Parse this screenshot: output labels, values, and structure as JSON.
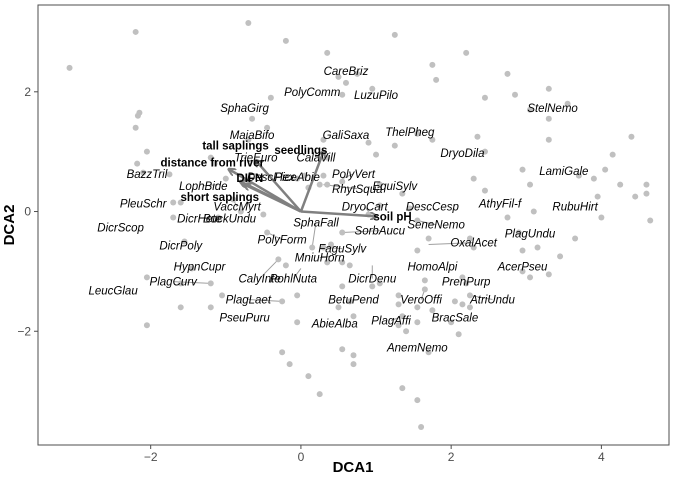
{
  "chart_data": {
    "type": "scatter",
    "xlabel": "DCA1",
    "ylabel": "DCA2",
    "xlim": [
      -3.5,
      4.9
    ],
    "ylim": [
      -3.9,
      3.45
    ],
    "x_ticks": [
      -2,
      0,
      2,
      4
    ],
    "y_ticks": [
      -2,
      0,
      2
    ],
    "grid": false,
    "colors": {
      "point": "#c0c0c0",
      "arrow": "#808080",
      "leader": "#a0a0a0",
      "frame": "#4d4d4d"
    },
    "points": [
      [
        -3.08,
        2.4
      ],
      [
        -2.2,
        3.0
      ],
      [
        -2.15,
        1.65
      ],
      [
        -2.17,
        1.6
      ],
      [
        -2.2,
        1.4
      ],
      [
        -2.05,
        1.0
      ],
      [
        -2.18,
        0.8
      ],
      [
        -2.1,
        0.65
      ],
      [
        -2.05,
        -1.1
      ],
      [
        -2.05,
        -1.9
      ],
      [
        -1.75,
        0.62
      ],
      [
        -1.7,
        0.15
      ],
      [
        -1.6,
        0.15
      ],
      [
        -1.7,
        -0.1
      ],
      [
        -1.55,
        -0.5
      ],
      [
        -1.6,
        -1.2
      ],
      [
        -1.6,
        -1.6
      ],
      [
        -1.45,
        -0.95
      ],
      [
        -1.2,
        -1.2
      ],
      [
        -1.2,
        -1.6
      ],
      [
        -1.05,
        -1.4
      ],
      [
        -1.1,
        -0.1
      ],
      [
        -1.0,
        0.55
      ],
      [
        -1.2,
        0.9
      ],
      [
        -1.15,
        0.8
      ],
      [
        -0.9,
        0.2
      ],
      [
        -0.8,
        0.0
      ],
      [
        -0.7,
        0.45
      ],
      [
        -0.5,
        -0.05
      ],
      [
        -0.45,
        -0.35
      ],
      [
        -0.3,
        -0.8
      ],
      [
        -0.2,
        -0.9
      ],
      [
        -0.25,
        -1.5
      ],
      [
        -0.05,
        -1.4
      ],
      [
        -0.05,
        -1.85
      ],
      [
        -0.05,
        0.55
      ],
      [
        0.05,
        0.6
      ],
      [
        0.1,
        0.4
      ],
      [
        0.25,
        0.45
      ],
      [
        0.15,
        -0.6
      ],
      [
        0.3,
        -0.6
      ],
      [
        0.35,
        -0.85
      ],
      [
        0.55,
        -0.85
      ],
      [
        0.65,
        -0.9
      ],
      [
        0.5,
        -1.6
      ],
      [
        0.65,
        -1.5
      ],
      [
        0.7,
        -1.75
      ],
      [
        0.55,
        -1.25
      ],
      [
        0.95,
        -1.25
      ],
      [
        1.05,
        -1.2
      ],
      [
        -0.7,
        3.15
      ],
      [
        -0.2,
        2.85
      ],
      [
        0.35,
        2.65
      ],
      [
        0.5,
        2.25
      ],
      [
        0.6,
        2.15
      ],
      [
        0.75,
        2.3
      ],
      [
        0.95,
        2.05
      ],
      [
        0.55,
        1.95
      ],
      [
        -0.4,
        1.9
      ],
      [
        -0.65,
        1.55
      ],
      [
        -0.45,
        1.4
      ],
      [
        -0.7,
        1.2
      ],
      [
        0.3,
        1.2
      ],
      [
        0.9,
        1.15
      ],
      [
        1.0,
        0.95
      ],
      [
        1.25,
        1.1
      ],
      [
        1.55,
        1.3
      ],
      [
        1.75,
        1.2
      ],
      [
        0.35,
        0.9
      ],
      [
        0.3,
        0.6
      ],
      [
        0.35,
        0.45
      ],
      [
        0.55,
        0.5
      ],
      [
        0.4,
        -0.55
      ],
      [
        0.55,
        -0.35
      ],
      [
        0.9,
        -0.05
      ],
      [
        1.05,
        0.45
      ],
      [
        1.05,
        0.1
      ],
      [
        1.35,
        0.3
      ],
      [
        1.45,
        0.05
      ],
      [
        1.55,
        -0.15
      ],
      [
        1.7,
        -0.45
      ],
      [
        1.55,
        -0.65
      ],
      [
        1.65,
        -1.15
      ],
      [
        1.65,
        -1.3
      ],
      [
        1.55,
        -1.6
      ],
      [
        1.75,
        -1.65
      ],
      [
        1.55,
        -1.85
      ],
      [
        1.3,
        -1.4
      ],
      [
        1.3,
        -1.55
      ],
      [
        1.35,
        -1.75
      ],
      [
        1.3,
        -1.9
      ],
      [
        1.4,
        -2.0
      ],
      [
        1.35,
        -2.95
      ],
      [
        1.55,
        -3.15
      ],
      [
        1.6,
        -3.6
      ],
      [
        1.7,
        -2.35
      ],
      [
        0.7,
        -2.4
      ],
      [
        0.7,
        -2.55
      ],
      [
        -0.25,
        -2.35
      ],
      [
        -0.15,
        -2.55
      ],
      [
        0.1,
        -2.75
      ],
      [
        0.25,
        -3.05
      ],
      [
        0.55,
        -2.3
      ],
      [
        1.25,
        2.95
      ],
      [
        1.75,
        2.45
      ],
      [
        1.8,
        2.2
      ],
      [
        2.2,
        2.65
      ],
      [
        2.45,
        1.9
      ],
      [
        2.35,
        1.25
      ],
      [
        2.45,
        1.0
      ],
      [
        2.3,
        0.55
      ],
      [
        2.45,
        0.35
      ],
      [
        2.25,
        -0.45
      ],
      [
        2.3,
        -0.6
      ],
      [
        2.15,
        -1.1
      ],
      [
        2.2,
        -1.2
      ],
      [
        2.25,
        -1.4
      ],
      [
        2.05,
        -1.5
      ],
      [
        2.15,
        -1.55
      ],
      [
        2.25,
        -1.6
      ],
      [
        2.0,
        -1.85
      ],
      [
        2.1,
        -2.05
      ],
      [
        2.75,
        2.3
      ],
      [
        2.85,
        1.95
      ],
      [
        3.05,
        1.7
      ],
      [
        3.3,
        2.05
      ],
      [
        3.3,
        1.55
      ],
      [
        3.55,
        1.8
      ],
      [
        3.3,
        1.2
      ],
      [
        2.95,
        0.7
      ],
      [
        3.05,
        0.45
      ],
      [
        2.75,
        -0.1
      ],
      [
        2.9,
        -0.35
      ],
      [
        2.95,
        -0.65
      ],
      [
        3.15,
        -0.6
      ],
      [
        2.95,
        -1.0
      ],
      [
        3.05,
        -1.1
      ],
      [
        3.3,
        -1.05
      ],
      [
        3.45,
        -0.75
      ],
      [
        3.65,
        -0.45
      ],
      [
        3.7,
        0.6
      ],
      [
        3.9,
        0.55
      ],
      [
        4.15,
        0.95
      ],
      [
        4.4,
        1.25
      ],
      [
        4.45,
        0.25
      ],
      [
        4.6,
        0.45
      ],
      [
        4.6,
        0.3
      ],
      [
        4.65,
        -0.15
      ],
      [
        4.25,
        0.45
      ],
      [
        4.0,
        -0.1
      ],
      [
        3.95,
        0.25
      ],
      [
        4.05,
        0.7
      ],
      [
        3.1,
        0.0
      ]
    ],
    "vectors": [
      {
        "name": "tall saplings",
        "x": -0.6,
        "y": 0.85
      },
      {
        "name": "seedlings",
        "x": 0.3,
        "y": 1.0
      },
      {
        "name": "distance from river",
        "x": -0.95,
        "y": 0.7
      },
      {
        "name": "DIFN",
        "x": -0.8,
        "y": 0.5
      },
      {
        "name": "short saplings",
        "x": -0.75,
        "y": 0.45
      },
      {
        "name": "soil pH",
        "x": 1.0,
        "y": -0.08
      }
    ],
    "vector_labels": [
      {
        "text": "tall saplings",
        "x": -0.87,
        "y": 1.1
      },
      {
        "text": "seedlings",
        "x": 0.0,
        "y": 1.03
      },
      {
        "text": "distance from river",
        "x": -1.18,
        "y": 0.82
      },
      {
        "text": "DIFN",
        "x": -0.68,
        "y": 0.56
      },
      {
        "text": "short saplings",
        "x": -1.08,
        "y": 0.24
      },
      {
        "text": "soil pH",
        "x": 1.22,
        "y": -0.08
      }
    ],
    "species": [
      {
        "name": "CareBriz",
        "x": 0.6,
        "y": 2.35
      },
      {
        "name": "PolyComm",
        "x": 0.15,
        "y": 2.0
      },
      {
        "name": "LuzuPilo",
        "x": 1.0,
        "y": 1.95
      },
      {
        "name": "SphaGirg",
        "x": -0.75,
        "y": 1.73
      },
      {
        "name": "StelNemo",
        "x": 3.35,
        "y": 1.73
      },
      {
        "name": "ThelPheg",
        "x": 1.45,
        "y": 1.33
      },
      {
        "name": "MaiaBifo",
        "x": -0.65,
        "y": 1.28
      },
      {
        "name": "GaliSaxa",
        "x": 0.6,
        "y": 1.28
      },
      {
        "name": "DryoDila",
        "x": 2.15,
        "y": 0.98
      },
      {
        "name": "TrieEuro",
        "x": -0.6,
        "y": 0.9
      },
      {
        "name": "CalaVill",
        "x": 0.2,
        "y": 0.9
      },
      {
        "name": "PolyVert",
        "x": 0.7,
        "y": 0.63
      },
      {
        "name": "LamiGale",
        "x": 3.5,
        "y": 0.68
      },
      {
        "name": "BazzTril",
        "x": -2.05,
        "y": 0.63
      },
      {
        "name": "DescFlex",
        "x": -0.4,
        "y": 0.58
      },
      {
        "name": "PiceAbie",
        "x": -0.05,
        "y": 0.58
      },
      {
        "name": "LophBide",
        "x": -1.3,
        "y": 0.43
      },
      {
        "name": "EquiSylv",
        "x": 1.25,
        "y": 0.43
      },
      {
        "name": "RhytSqua",
        "x": 0.75,
        "y": 0.38
      },
      {
        "name": "PleuSchr",
        "x": -2.1,
        "y": 0.13
      },
      {
        "name": "AthyFil-f",
        "x": 2.65,
        "y": 0.13
      },
      {
        "name": "RubuHirt",
        "x": 3.65,
        "y": 0.08
      },
      {
        "name": "VaccMyrt",
        "x": -0.85,
        "y": 0.08
      },
      {
        "name": "DryoCart",
        "x": 0.85,
        "y": 0.08
      },
      {
        "name": "DescCesp",
        "x": 1.75,
        "y": 0.08
      },
      {
        "name": "BuckUndu",
        "x": -0.95,
        "y": -0.12
      },
      {
        "name": "DicrHete",
        "x": -1.35,
        "y": -0.12
      },
      {
        "name": "SphaFall",
        "x": 0.2,
        "y": -0.18
      },
      {
        "name": "SeneNemo",
        "x": 1.8,
        "y": -0.22
      },
      {
        "name": "DicrScop",
        "x": -2.4,
        "y": -0.27
      },
      {
        "name": "SorbAucu",
        "x": 1.05,
        "y": -0.32
      },
      {
        "name": "PlagUndu",
        "x": 3.05,
        "y": -0.37
      },
      {
        "name": "PolyForm",
        "x": -0.25,
        "y": -0.47
      },
      {
        "name": "OxalAcet",
        "x": 2.3,
        "y": -0.52
      },
      {
        "name": "DicrPoly",
        "x": -1.6,
        "y": -0.57
      },
      {
        "name": "FaguSylv",
        "x": 0.55,
        "y": -0.62
      },
      {
        "name": "MniuHorn",
        "x": 0.25,
        "y": -0.77
      },
      {
        "name": "HypnCupr",
        "x": -1.35,
        "y": -0.92
      },
      {
        "name": "HomoAlpi",
        "x": 1.75,
        "y": -0.92
      },
      {
        "name": "AcerPseu",
        "x": 2.95,
        "y": -0.92
      },
      {
        "name": "CalyInte",
        "x": -0.55,
        "y": -1.12
      },
      {
        "name": "PohlNuta",
        "x": -0.1,
        "y": -1.12
      },
      {
        "name": "DicrDenu",
        "x": 0.95,
        "y": -1.12
      },
      {
        "name": "PlagCurv",
        "x": -1.7,
        "y": -1.17
      },
      {
        "name": "PrenPurp",
        "x": 2.2,
        "y": -1.17
      },
      {
        "name": "LeucGlau",
        "x": -2.5,
        "y": -1.32
      },
      {
        "name": "PlagLaet",
        "x": -0.7,
        "y": -1.47
      },
      {
        "name": "BetuPend",
        "x": 0.7,
        "y": -1.47
      },
      {
        "name": "VeroOffi",
        "x": 1.6,
        "y": -1.47
      },
      {
        "name": "AtriUndu",
        "x": 2.55,
        "y": -1.47
      },
      {
        "name": "PseuPuru",
        "x": -0.75,
        "y": -1.77
      },
      {
        "name": "BracSale",
        "x": 2.05,
        "y": -1.77
      },
      {
        "name": "PlagAffi",
        "x": 1.2,
        "y": -1.82
      },
      {
        "name": "AbieAlba",
        "x": 0.45,
        "y": -1.87
      },
      {
        "name": "AnemNemo",
        "x": 1.55,
        "y": -2.27
      }
    ],
    "leaders": [
      [
        [
          -1.3,
          0.43
        ],
        [
          -1.1,
          0.45
        ]
      ],
      [
        [
          -0.4,
          0.58
        ],
        [
          -0.35,
          0.5
        ]
      ],
      [
        [
          0.75,
          0.38
        ],
        [
          0.3,
          0.45
        ]
      ],
      [
        [
          0.7,
          0.63
        ],
        [
          0.55,
          0.55
        ]
      ],
      [
        [
          -0.85,
          0.08
        ],
        [
          -0.9,
          0.2
        ]
      ],
      [
        [
          0.85,
          0.08
        ],
        [
          0.9,
          0.0
        ]
      ],
      [
        [
          1.8,
          -0.22
        ],
        [
          1.55,
          -0.15
        ]
      ],
      [
        [
          1.05,
          -0.32
        ],
        [
          0.55,
          -0.35
        ]
      ],
      [
        [
          0.2,
          -0.18
        ],
        [
          0.15,
          -0.6
        ]
      ],
      [
        [
          -0.25,
          -0.47
        ],
        [
          -0.45,
          -0.35
        ]
      ],
      [
        [
          2.3,
          -0.52
        ],
        [
          1.7,
          -0.55
        ]
      ],
      [
        [
          0.55,
          -0.62
        ],
        [
          0.3,
          -0.6
        ]
      ],
      [
        [
          0.25,
          -0.77
        ],
        [
          0.4,
          -0.75
        ]
      ],
      [
        [
          -0.1,
          -1.12
        ],
        [
          0.0,
          -0.95
        ]
      ],
      [
        [
          0.95,
          -1.12
        ],
        [
          0.95,
          -0.9
        ]
      ],
      [
        [
          -0.55,
          -1.12
        ],
        [
          -0.3,
          -0.8
        ]
      ],
      [
        [
          -1.7,
          -1.17
        ],
        [
          -1.2,
          -1.2
        ]
      ],
      [
        [
          -0.7,
          -1.47
        ],
        [
          -0.25,
          -1.5
        ]
      ],
      [
        [
          0.7,
          -1.47
        ],
        [
          0.65,
          -1.5
        ]
      ],
      [
        [
          1.6,
          -1.47
        ],
        [
          1.65,
          -1.3
        ]
      ],
      [
        [
          2.55,
          -1.47
        ],
        [
          2.25,
          -1.4
        ]
      ],
      [
        [
          1.2,
          -1.82
        ],
        [
          1.35,
          -1.75
        ]
      ],
      [
        [
          2.2,
          -1.17
        ],
        [
          2.15,
          -1.1
        ]
      ]
    ]
  }
}
